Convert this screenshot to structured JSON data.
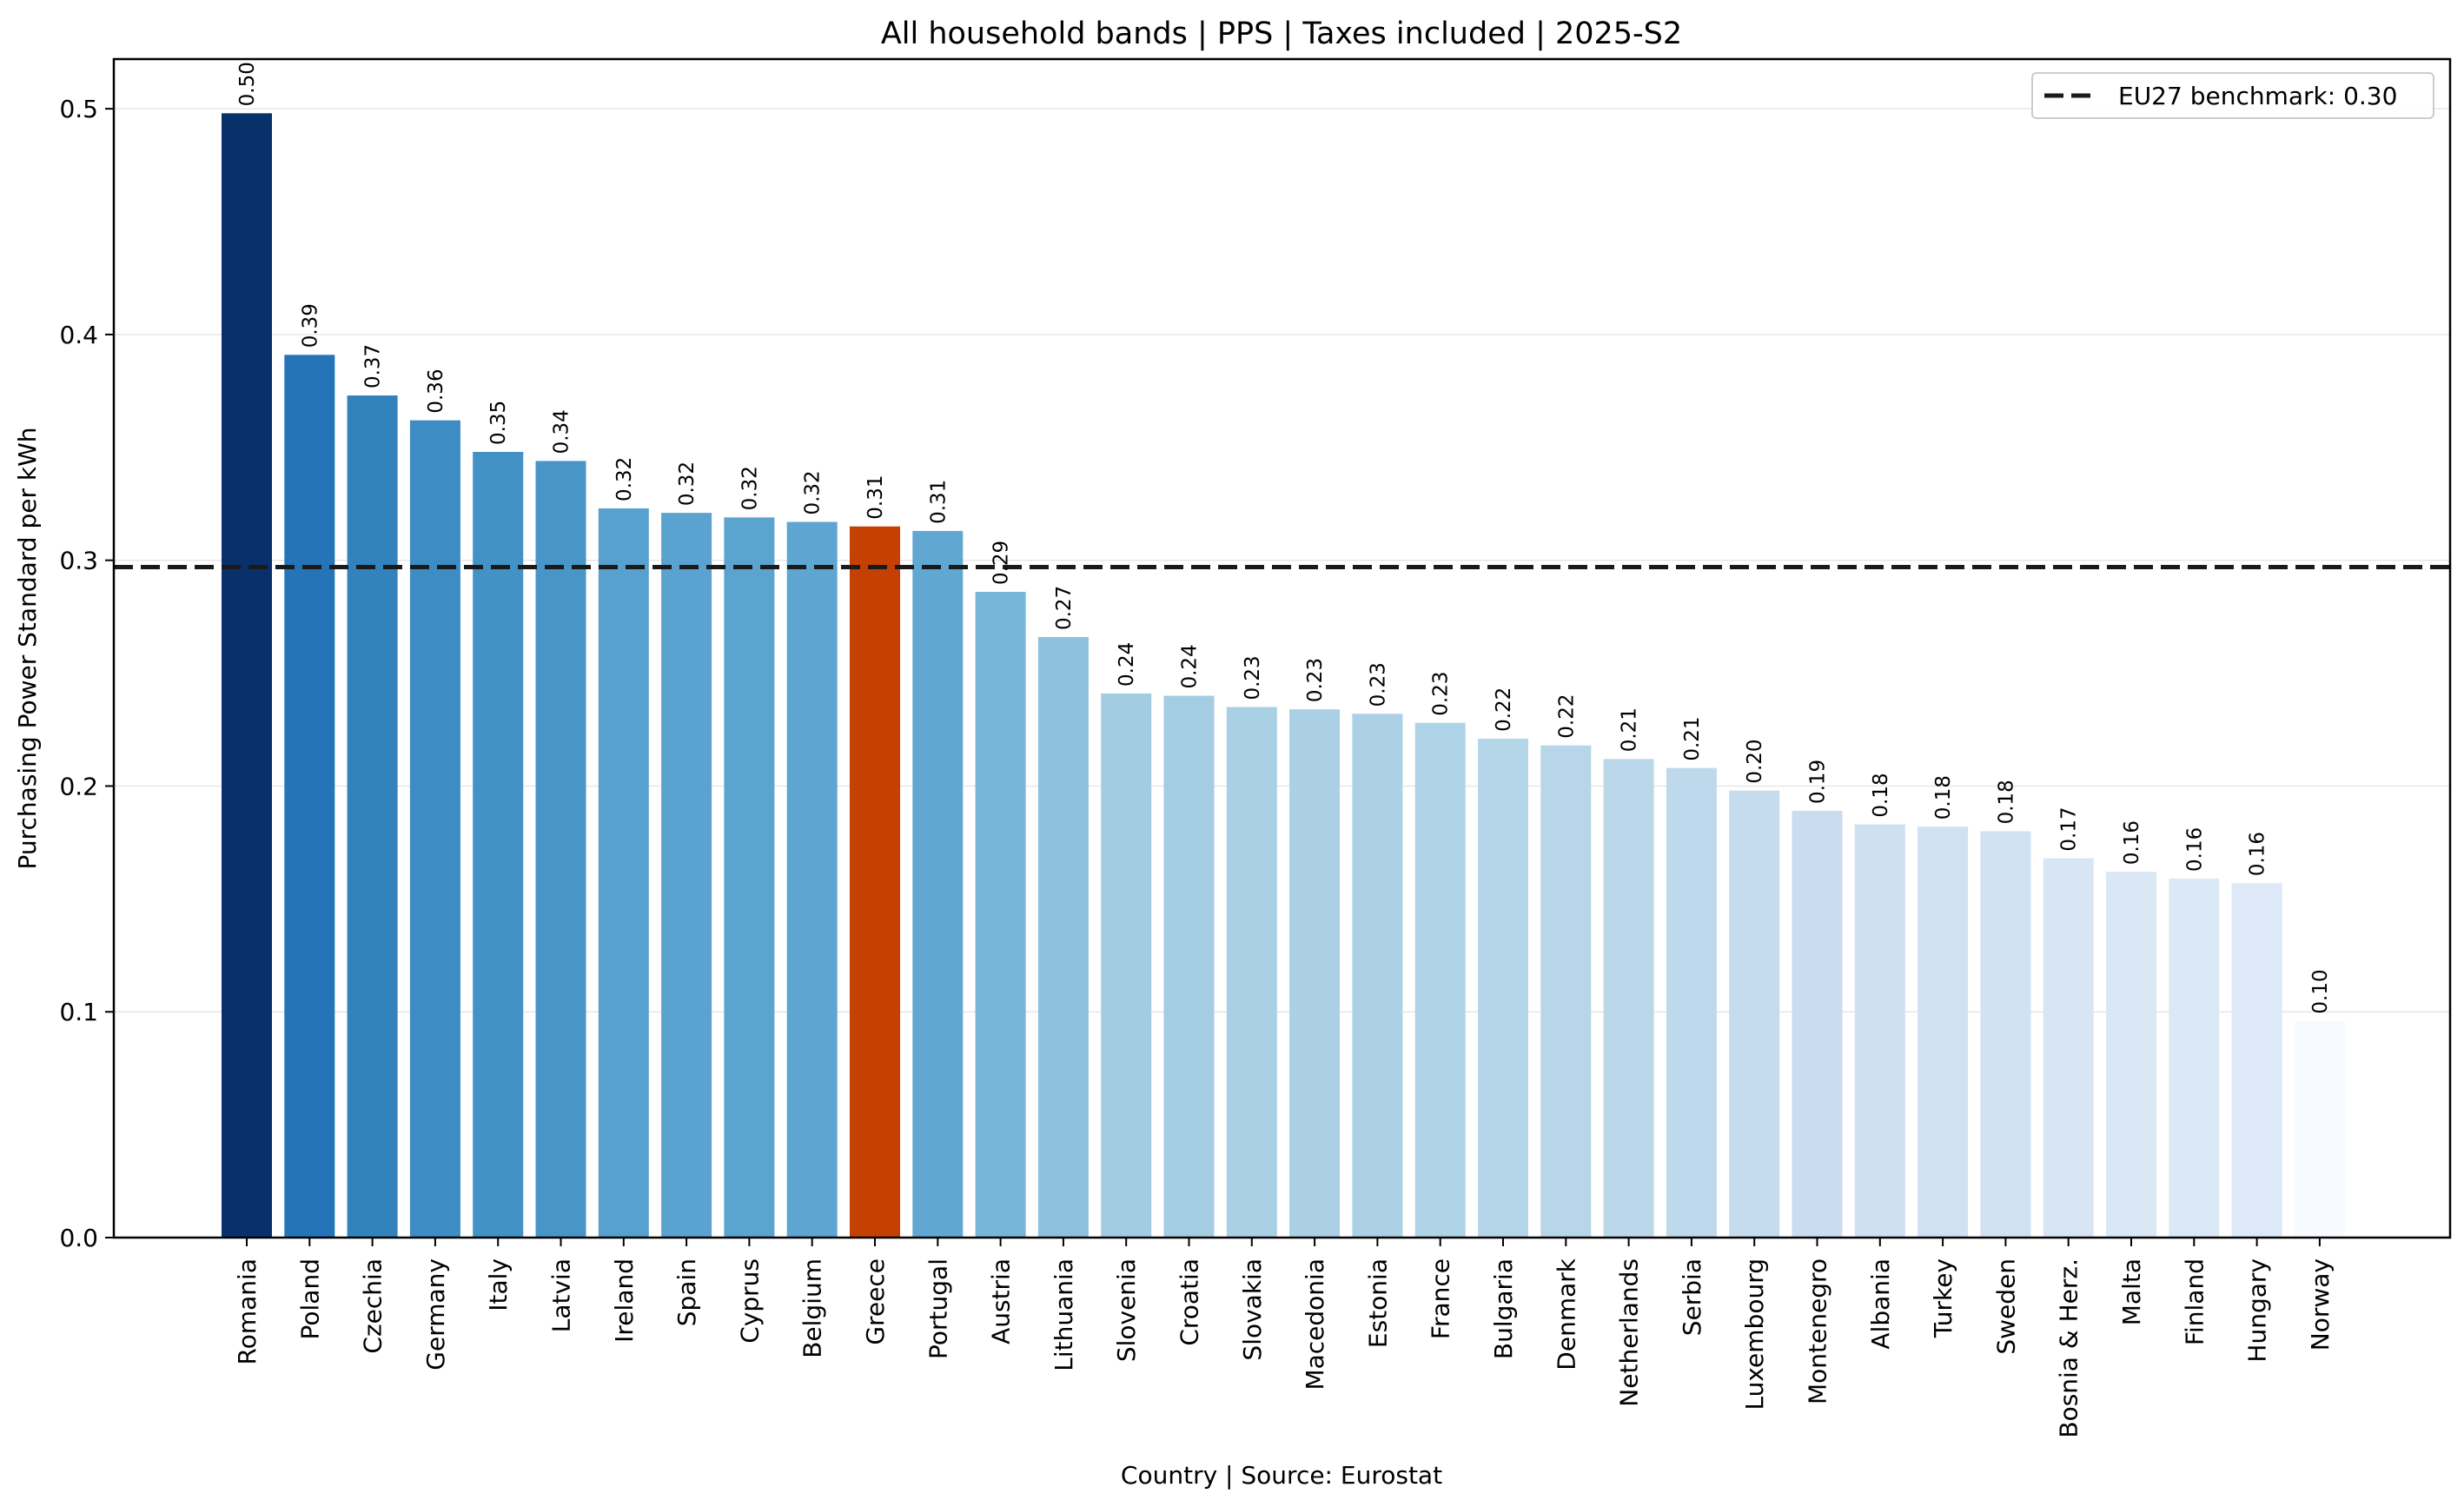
{
  "chart_data": {
    "type": "bar",
    "title": "All household bands | PPS | Taxes included | 2025-S2",
    "xlabel": "Country | Source: Eurostat",
    "ylabel": "Purchasing Power Standard per kWh",
    "ylim": [
      0,
      0.522
    ],
    "yticks": [
      0.0,
      0.1,
      0.2,
      0.3,
      0.4,
      0.5
    ],
    "ytick_labels": [
      "0.0",
      "0.1",
      "0.2",
      "0.3",
      "0.4",
      "0.5"
    ],
    "grid": "horizontal",
    "legend_position": "top-right",
    "categories": [
      "Romania",
      "Poland",
      "Czechia",
      "Germany",
      "Italy",
      "Latvia",
      "Ireland",
      "Spain",
      "Cyprus",
      "Belgium",
      "Greece",
      "Portugal",
      "Austria",
      "Lithuania",
      "Slovenia",
      "Croatia",
      "Slovakia",
      "Macedonia",
      "Estonia",
      "France",
      "Bulgaria",
      "Denmark",
      "Netherlands",
      "Serbia",
      "Luxembourg",
      "Montenegro",
      "Albania",
      "Turkey",
      "Sweden",
      "Bosnia & Herz.",
      "Malta",
      "Finland",
      "Hungary",
      "Norway"
    ],
    "values": [
      0.498,
      0.391,
      0.373,
      0.362,
      0.348,
      0.344,
      0.323,
      0.321,
      0.319,
      0.317,
      0.315,
      0.313,
      0.286,
      0.266,
      0.241,
      0.24,
      0.235,
      0.234,
      0.232,
      0.228,
      0.221,
      0.218,
      0.212,
      0.208,
      0.198,
      0.189,
      0.183,
      0.182,
      0.18,
      0.168,
      0.162,
      0.159,
      0.157,
      0.096
    ],
    "value_labels": [
      "0.50",
      "0.39",
      "0.37",
      "0.36",
      "0.35",
      "0.34",
      "0.32",
      "0.32",
      "0.32",
      "0.32",
      "0.31",
      "0.31",
      "0.29",
      "0.27",
      "0.24",
      "0.24",
      "0.23",
      "0.23",
      "0.23",
      "0.23",
      "0.22",
      "0.22",
      "0.21",
      "0.21",
      "0.20",
      "0.19",
      "0.18",
      "0.18",
      "0.18",
      "0.17",
      "0.16",
      "0.16",
      "0.16",
      "0.10"
    ],
    "colors": [
      "#08306b",
      "#2474b7",
      "#3282be",
      "#3d8dc4",
      "#4292c6",
      "#4896c8",
      "#58a1cf",
      "#5aa2cf",
      "#5ca4d0",
      "#5ea5d1",
      "#c44103",
      "#60a7d2",
      "#77b5d9",
      "#8dc1dd",
      "#a3cce3",
      "#a4cde3",
      "#aad0e5",
      "#abd0e6",
      "#acd1e6",
      "#afd3e7",
      "#b5d5e9",
      "#b7d6ea",
      "#bbd8eb",
      "#bfd9ec",
      "#c5dcee",
      "#c9ddf0",
      "#cee0f2",
      "#cfe1f2",
      "#d1e2f3",
      "#d8e6f4",
      "#dae8f5",
      "#dbe9f6",
      "#dde9f6",
      "#f7fbff"
    ],
    "highlight": "Greece",
    "benchmark": {
      "value": 0.297,
      "label": "EU27 benchmark: 0.30",
      "color": "#1a1a1a",
      "style": "dashed"
    }
  }
}
